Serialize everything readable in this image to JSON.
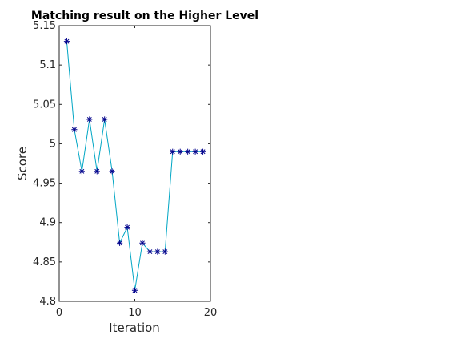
{
  "chart_data": {
    "type": "line",
    "title": "Matching result on the Higher Level",
    "xlabel": "Iteration",
    "ylabel": "Score",
    "xlim": [
      0,
      20
    ],
    "ylim": [
      4.8,
      5.15
    ],
    "xticks": [
      0,
      10,
      20
    ],
    "yticks": [
      4.8,
      4.85,
      4.9,
      4.95,
      5,
      5.05,
      5.1,
      5.15
    ],
    "ytick_labels": [
      "4.8",
      "4.85",
      "4.9",
      "4.95",
      "5",
      "5.05",
      "5.1",
      "5.15"
    ],
    "grid": false,
    "legend": null,
    "line_color": "#00a6c4",
    "marker": "asterisk",
    "marker_color": "#00008b",
    "series": [
      {
        "x": [
          1,
          2,
          3,
          4,
          5,
          6,
          7,
          8,
          9,
          10,
          11,
          12,
          13,
          14,
          15,
          16,
          17,
          18,
          19
        ],
        "values": [
          5.13,
          5.018,
          4.965,
          5.031,
          4.965,
          5.031,
          4.965,
          4.874,
          4.894,
          4.814,
          4.874,
          4.863,
          4.863,
          4.863,
          4.99,
          4.99,
          4.99,
          4.99,
          4.99
        ]
      }
    ]
  }
}
